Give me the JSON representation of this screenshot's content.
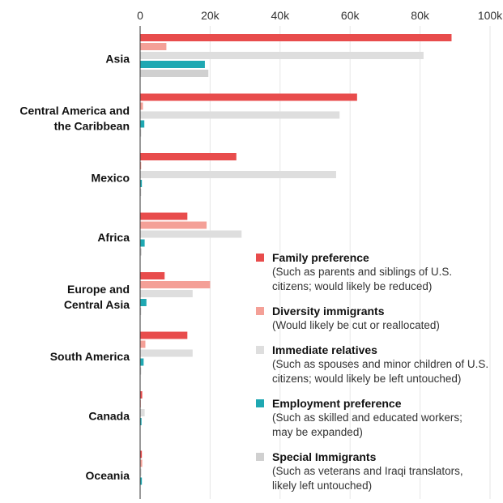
{
  "chart_data": {
    "type": "bar",
    "orientation": "horizontal",
    "x_ticks": [
      "0",
      "20k",
      "40k",
      "60k",
      "80k",
      "100k"
    ],
    "xlim": [
      0,
      100000
    ],
    "grid": true,
    "legend_position": "bottom-right",
    "categories": [
      "Asia",
      "Central America and the Caribbean",
      "Mexico",
      "Africa",
      "Europe and Central Asia",
      "South America",
      "Canada",
      "Oceania"
    ],
    "category_lines": [
      [
        "Asia"
      ],
      [
        "Central America and",
        "the Caribbean"
      ],
      [
        "Mexico"
      ],
      [
        "Africa"
      ],
      [
        "Europe and",
        "Central Asia"
      ],
      [
        "South America"
      ],
      [
        "Canada"
      ],
      [
        "Oceania"
      ]
    ],
    "series": [
      {
        "name": "Family preference",
        "description": "(Such as parents and siblings of U.S. citizens; would likely be reduced)",
        "description_lines": [
          "(Such as parents and siblings of U.S.",
          "citizens; would likely be reduced)"
        ],
        "color": "#e84c4c",
        "values": [
          89000,
          62000,
          27500,
          13500,
          7000,
          13500,
          600,
          500
        ]
      },
      {
        "name": "Diversity immigrants",
        "description": "(Would likely be cut or reallocated)",
        "description_lines": [
          "(Would likely be cut or reallocated)"
        ],
        "color": "#f4a097",
        "values": [
          7500,
          800,
          300,
          19000,
          20000,
          1500,
          200,
          600
        ]
      },
      {
        "name": "Immediate relatives",
        "description": "(Such as spouses and minor children of U.S. citizens; would likely be left untouched)",
        "description_lines": [
          "(Such as spouses and minor children of U.S.",
          "citizens; would likely be left untouched)"
        ],
        "color": "#dedede",
        "values": [
          81000,
          57000,
          56000,
          29000,
          15000,
          15000,
          1300,
          400
        ]
      },
      {
        "name": "Employment preference",
        "description": "(Such as skilled and educated workers; may be expanded)",
        "description_lines": [
          "(Such as skilled and educated workers;",
          "may be expanded)"
        ],
        "color": "#1fa8b2",
        "values": [
          18500,
          1200,
          500,
          1300,
          1800,
          1000,
          400,
          500
        ]
      },
      {
        "name": "Special Immigrants",
        "description": "(Such as veterans and Iraqi translators, likely left untouched)",
        "description_lines": [
          "(Such as veterans and Iraqi translators,",
          "likely left untouched)"
        ],
        "color": "#d0d0d0",
        "values": [
          19500,
          300,
          300,
          400,
          300,
          300,
          100,
          100
        ]
      }
    ]
  }
}
